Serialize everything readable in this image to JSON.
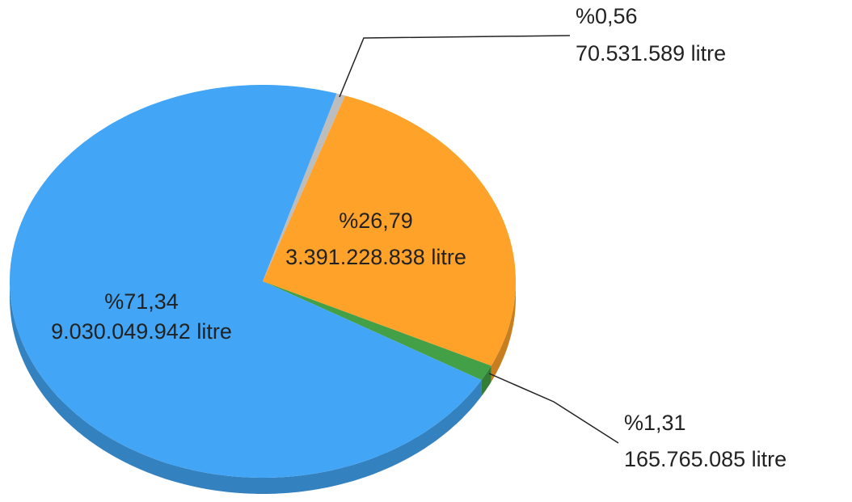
{
  "chart_data": {
    "type": "pie",
    "values": [
      0.56,
      26.79,
      1.31,
      71.34
    ],
    "value_labels": [
      "%0,56",
      "%26,79",
      "%1,31",
      "%71,34"
    ],
    "volumes": [
      70531589,
      3391228838,
      165765085,
      9030049942
    ],
    "volume_labels": [
      "70.531.589 litre",
      "3.391.228.838 litre",
      "165.765.085 litre",
      "9.030.049.942 litre"
    ],
    "colors": [
      "#bdbdbd",
      "#ffa22a",
      "#43a047",
      "#42a5f5"
    ]
  }
}
